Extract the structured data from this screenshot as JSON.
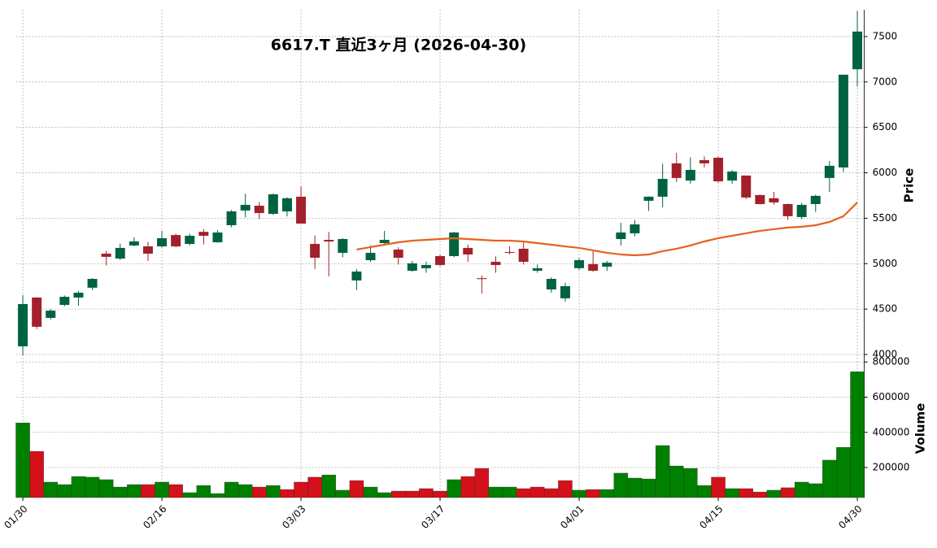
{
  "chart_data": {
    "type": "candlestick",
    "title": "6617.T  直近3ヶ月  (2026-04-30)",
    "categories": [
      "01/30",
      null,
      null,
      null,
      null,
      null,
      null,
      null,
      null,
      null,
      "02/16",
      null,
      null,
      null,
      null,
      null,
      null,
      null,
      null,
      null,
      "03/03",
      null,
      null,
      null,
      null,
      null,
      null,
      null,
      null,
      null,
      "03/17",
      null,
      null,
      null,
      null,
      null,
      null,
      null,
      null,
      null,
      "04/01",
      null,
      null,
      null,
      null,
      null,
      null,
      null,
      null,
      null,
      "04/15",
      null,
      null,
      null,
      null,
      null,
      null,
      null,
      null,
      null,
      "04/30"
    ],
    "open": [
      4090,
      4627,
      4403,
      4546,
      4627,
      4735,
      5110,
      5056,
      5200,
      5190,
      5190,
      5315,
      5217,
      5350,
      5235,
      5423,
      5585,
      5638,
      5548,
      5575,
      5737,
      5217,
      5262,
      5119,
      4815,
      5038,
      5226,
      5155,
      4922,
      4950,
      5083,
      5083,
      5173,
      4840,
      5020,
      5128,
      5164,
      4922,
      4716,
      4618,
      4950,
      4995,
      4967,
      5271,
      5334,
      5692,
      5737,
      6104,
      5915,
      6139,
      6166,
      5915,
      5970,
      5755,
      5720,
      5656,
      5513,
      5656,
      5943,
      6059,
      7140
    ],
    "high": [
      4653,
      4630,
      4500,
      4650,
      4700,
      4840,
      5140,
      5220,
      5290,
      5240,
      5360,
      5330,
      5330,
      5380,
      5370,
      5590,
      5770,
      5680,
      5770,
      5730,
      5850,
      5310,
      5350,
      5280,
      4940,
      5200,
      5360,
      5180,
      5030,
      5020,
      5100,
      5350,
      5210,
      4870,
      5080,
      5190,
      5230,
      4990,
      4850,
      4790,
      5060,
      5150,
      5030,
      5450,
      5480,
      5740,
      6100,
      6220,
      6170,
      6180,
      6180,
      6030,
      5970,
      5760,
      5790,
      5660,
      5670,
      5760,
      6130,
      7080,
      7780
    ],
    "low": [
      3990,
      4280,
      4385,
      4530,
      4537,
      4710,
      4980,
      5040,
      5190,
      5030,
      5180,
      5180,
      5200,
      5210,
      5230,
      5400,
      5510,
      5490,
      5540,
      5520,
      5440,
      4940,
      4860,
      5070,
      4710,
      5020,
      5200,
      4990,
      4910,
      4900,
      4970,
      5070,
      5020,
      4670,
      4900,
      5100,
      4990,
      4900,
      4680,
      4580,
      4930,
      4910,
      4920,
      5200,
      5300,
      5580,
      5620,
      5900,
      5880,
      6060,
      5890,
      5880,
      5710,
      5650,
      5650,
      5480,
      5490,
      5570,
      5790,
      6010,
      6950
    ],
    "close": [
      4555,
      4305,
      4483,
      4635,
      4680,
      4832,
      5075,
      5173,
      5245,
      5110,
      5280,
      5190,
      5307,
      5307,
      5343,
      5575,
      5647,
      5557,
      5763,
      5720,
      5441,
      5065,
      5244,
      5271,
      4913,
      5119,
      5262,
      5065,
      5003,
      4985,
      4985,
      5343,
      5101,
      4830,
      4985,
      5119,
      5020,
      4950,
      4832,
      4752,
      5038,
      4922,
      5010,
      5343,
      5432,
      5737,
      5933,
      5943,
      6032,
      6104,
      5906,
      6014,
      5728,
      5656,
      5674,
      5522,
      5647,
      5746,
      6077,
      7080,
      7555
    ],
    "up_color": "#006340",
    "down_color": "#a3202b",
    "moving_average": {
      "color": "#e8601c",
      "values": [
        null,
        null,
        null,
        null,
        null,
        null,
        null,
        null,
        null,
        null,
        null,
        null,
        null,
        null,
        null,
        null,
        null,
        null,
        null,
        null,
        null,
        null,
        null,
        null,
        5155,
        5182,
        5208,
        5235,
        5253,
        5262,
        5271,
        5280,
        5271,
        5262,
        5253,
        5253,
        5244,
        5226,
        5208,
        5190,
        5173,
        5146,
        5119,
        5101,
        5092,
        5101,
        5137,
        5164,
        5200,
        5244,
        5280,
        5307,
        5334,
        5361,
        5379,
        5397,
        5406,
        5423,
        5459,
        5522,
        5674
      ]
    },
    "volume": [
      454000,
      292000,
      117000,
      103000,
      149000,
      145000,
      131000,
      89000,
      103000,
      103000,
      117000,
      103000,
      57000,
      98000,
      52000,
      117000,
      103000,
      89000,
      98000,
      75000,
      117000,
      145000,
      158000,
      71000,
      126000,
      89000,
      57000,
      66000,
      66000,
      80000,
      66000,
      131000,
      149000,
      195000,
      89000,
      89000,
      80000,
      89000,
      80000,
      126000,
      71000,
      75000,
      75000,
      168000,
      140000,
      135000,
      325000,
      209000,
      195000,
      98000,
      145000,
      80000,
      80000,
      61000,
      71000,
      85000,
      117000,
      108000,
      242000,
      315000,
      745000
    ],
    "volume_colors": [
      "#008000",
      "#d4111b",
      "#008000",
      "#008000",
      "#008000",
      "#008000",
      "#008000",
      "#008000",
      "#008000",
      "#d4111b",
      "#008000",
      "#d4111b",
      "#008000",
      "#008000",
      "#008000",
      "#008000",
      "#008000",
      "#d4111b",
      "#008000",
      "#d4111b",
      "#d4111b",
      "#d4111b",
      "#008000",
      "#008000",
      "#d4111b",
      "#008000",
      "#008000",
      "#d4111b",
      "#d4111b",
      "#d4111b",
      "#d4111b",
      "#008000",
      "#d4111b",
      "#d4111b",
      "#008000",
      "#008000",
      "#d4111b",
      "#d4111b",
      "#d4111b",
      "#d4111b",
      "#008000",
      "#d4111b",
      "#008000",
      "#008000",
      "#008000",
      "#008000",
      "#008000",
      "#008000",
      "#008000",
      "#008000",
      "#d4111b",
      "#008000",
      "#d4111b",
      "#d4111b",
      "#008000",
      "#d4111b",
      "#008000",
      "#008000",
      "#008000",
      "#008000",
      "#008000"
    ],
    "ylabel": "Price",
    "ylim": [
      3964,
      7795
    ],
    "yticks": [
      4000,
      4500,
      5000,
      5500,
      6000,
      6500,
      7000,
      7500
    ],
    "y2label": "Volume",
    "y2lim": [
      29000,
      815000
    ],
    "y2ticks": [
      200000,
      400000,
      600000,
      800000
    ],
    "grid": true
  }
}
